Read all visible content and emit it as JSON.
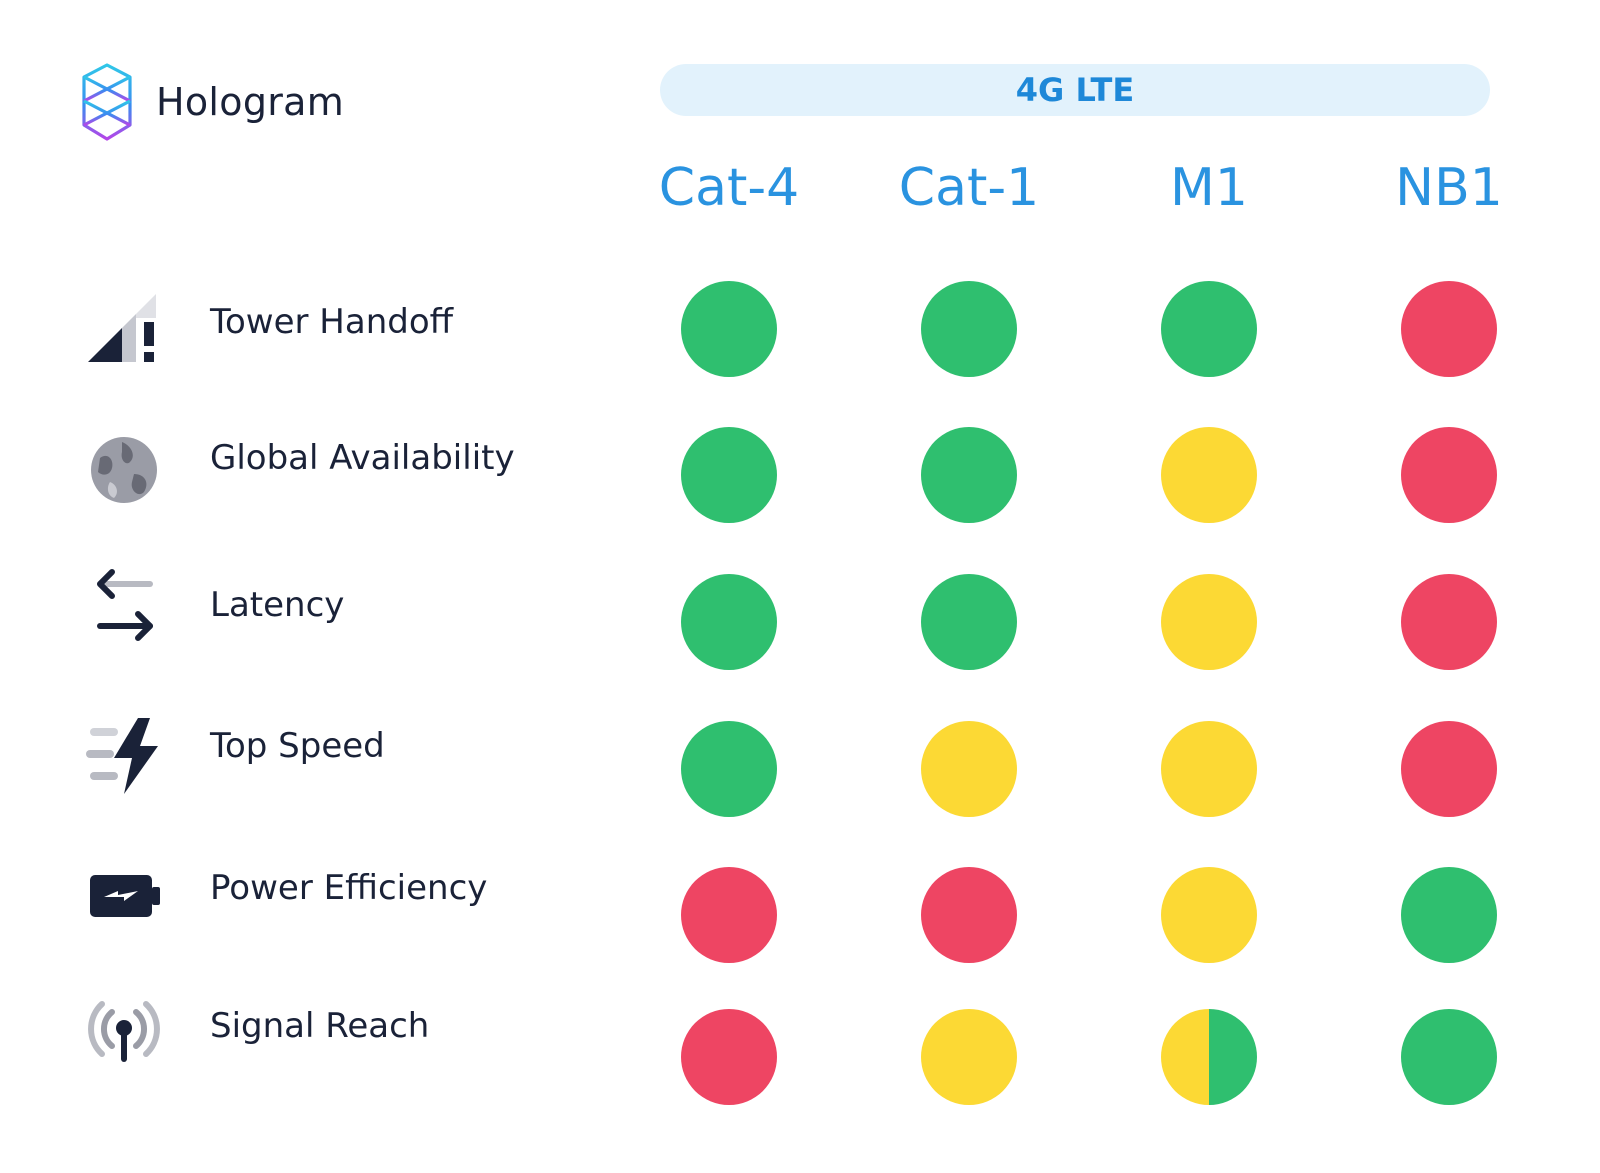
{
  "brand": {
    "name": "Hologram",
    "icon": "hologram-logo-icon"
  },
  "group_label": "4G LTE",
  "columns": [
    "Cat-4",
    "Cat-1",
    "M1",
    "NB1"
  ],
  "colors": {
    "green": "#2fbf6f",
    "yellow": "#fcd934",
    "red": "#ee4563",
    "accent": "#2a93e0",
    "band_bg": "#e2f2fc"
  },
  "rows": [
    {
      "label": "Tower Handoff",
      "icon": "signal-warning-icon",
      "ratings": [
        "green",
        "green",
        "green",
        "red"
      ]
    },
    {
      "label": "Global Availability",
      "icon": "globe-icon",
      "ratings": [
        "green",
        "green",
        "yellow",
        "red"
      ]
    },
    {
      "label": "Latency",
      "icon": "arrows-exchange-icon",
      "ratings": [
        "green",
        "green",
        "yellow",
        "red"
      ]
    },
    {
      "label": "Top Speed",
      "icon": "lightning-speed-icon",
      "ratings": [
        "green",
        "yellow",
        "yellow",
        "red"
      ]
    },
    {
      "label": "Power Efficiency",
      "icon": "battery-charging-icon",
      "ratings": [
        "red",
        "red",
        "yellow",
        "green"
      ]
    },
    {
      "label": "Signal Reach",
      "icon": "antenna-broadcast-icon",
      "ratings": [
        "red",
        "yellow",
        "yellow-green",
        "green"
      ]
    }
  ]
}
